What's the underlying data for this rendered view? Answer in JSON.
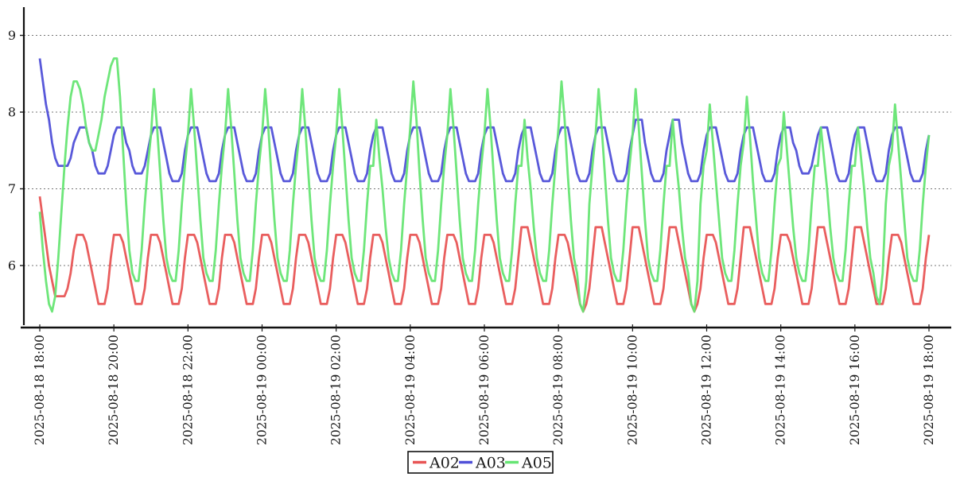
{
  "chart_data": {
    "type": "line",
    "title": "",
    "xlabel": "",
    "ylabel": "",
    "grid": "horizontal-dotted",
    "legend_position": "bottom-center",
    "x_axis": {
      "start": "2025-08-18 18:00",
      "end": "2025-08-19 18:00",
      "step_minutes": 5,
      "tick_every_n_points": 24,
      "tick_labels": [
        "2025-08-18 18:00",
        "2025-08-18 20:00",
        "2025-08-18 22:00",
        "2025-08-19 00:00",
        "2025-08-19 02:00",
        "2025-08-19 04:00",
        "2025-08-19 06:00",
        "2025-08-19 08:00",
        "2025-08-19 10:00",
        "2025-08-19 12:00",
        "2025-08-19 14:00",
        "2025-08-19 16:00",
        "2025-08-19 18:00"
      ]
    },
    "y_axis": {
      "ticks": [
        6,
        7,
        8,
        9
      ],
      "range": [
        5.2,
        9.4
      ]
    },
    "series": [
      {
        "name": "A02",
        "color": "#e85555",
        "values": [
          6.9,
          6.6,
          6.3,
          6.0,
          5.8,
          5.6,
          5.6,
          5.6,
          5.6,
          5.7,
          5.9,
          6.2,
          6.4,
          6.4,
          6.4,
          6.3,
          6.1,
          5.9,
          5.7,
          5.5,
          5.5,
          5.5,
          5.7,
          6.1,
          6.4,
          6.4,
          6.4,
          6.3,
          6.1,
          5.9,
          5.7,
          5.5,
          5.5,
          5.5,
          5.7,
          6.1,
          6.4,
          6.4,
          6.4,
          6.3,
          6.1,
          5.9,
          5.7,
          5.5,
          5.5,
          5.5,
          5.7,
          6.1,
          6.4,
          6.4,
          6.4,
          6.3,
          6.1,
          5.9,
          5.7,
          5.5,
          5.5,
          5.5,
          5.7,
          6.1,
          6.4,
          6.4,
          6.4,
          6.3,
          6.1,
          5.9,
          5.7,
          5.5,
          5.5,
          5.5,
          5.7,
          6.1,
          6.4,
          6.4,
          6.4,
          6.3,
          6.1,
          5.9,
          5.7,
          5.5,
          5.5,
          5.5,
          5.7,
          6.1,
          6.4,
          6.4,
          6.4,
          6.3,
          6.1,
          5.9,
          5.7,
          5.5,
          5.5,
          5.5,
          5.7,
          6.1,
          6.4,
          6.4,
          6.4,
          6.3,
          6.1,
          5.9,
          5.7,
          5.5,
          5.5,
          5.5,
          5.7,
          6.1,
          6.4,
          6.4,
          6.4,
          6.3,
          6.1,
          5.9,
          5.7,
          5.5,
          5.5,
          5.5,
          5.7,
          6.1,
          6.4,
          6.4,
          6.4,
          6.3,
          6.1,
          5.9,
          5.7,
          5.5,
          5.5,
          5.5,
          5.7,
          6.1,
          6.4,
          6.4,
          6.4,
          6.3,
          6.1,
          5.9,
          5.7,
          5.5,
          5.5,
          5.5,
          5.7,
          6.1,
          6.4,
          6.4,
          6.4,
          6.3,
          6.1,
          5.9,
          5.7,
          5.5,
          5.5,
          5.5,
          5.7,
          6.1,
          6.5,
          6.5,
          6.5,
          6.3,
          6.1,
          5.9,
          5.7,
          5.5,
          5.5,
          5.5,
          5.7,
          6.1,
          6.4,
          6.4,
          6.4,
          6.3,
          6.1,
          5.9,
          5.7,
          5.5,
          5.4,
          5.5,
          5.7,
          6.1,
          6.5,
          6.5,
          6.5,
          6.3,
          6.1,
          5.9,
          5.7,
          5.5,
          5.5,
          5.5,
          5.7,
          6.1,
          6.5,
          6.5,
          6.5,
          6.3,
          6.1,
          5.9,
          5.7,
          5.5,
          5.5,
          5.5,
          5.7,
          6.1,
          6.5,
          6.5,
          6.5,
          6.3,
          6.1,
          5.9,
          5.7,
          5.5,
          5.4,
          5.5,
          5.7,
          6.1,
          6.4,
          6.4,
          6.4,
          6.3,
          6.1,
          5.9,
          5.7,
          5.5,
          5.5,
          5.5,
          5.7,
          6.1,
          6.5,
          6.5,
          6.5,
          6.3,
          6.1,
          5.9,
          5.7,
          5.5,
          5.5,
          5.5,
          5.7,
          6.1,
          6.4,
          6.4,
          6.4,
          6.3,
          6.1,
          5.9,
          5.7,
          5.5,
          5.5,
          5.5,
          5.7,
          6.1,
          6.5,
          6.5,
          6.5,
          6.3,
          6.1,
          5.9,
          5.7,
          5.5,
          5.5,
          5.5,
          5.7,
          6.1,
          6.5,
          6.5,
          6.5,
          6.3,
          6.1,
          5.9,
          5.7,
          5.5,
          5.5,
          5.5,
          5.7,
          6.1,
          6.4,
          6.4,
          6.4,
          6.3,
          6.1,
          5.9,
          5.7,
          5.5,
          5.5,
          5.5,
          5.7,
          6.1,
          6.4
        ]
      },
      {
        "name": "A03",
        "color": "#5050d8",
        "values": [
          8.7,
          8.4,
          8.1,
          7.9,
          7.6,
          7.4,
          7.3,
          7.3,
          7.3,
          7.3,
          7.4,
          7.6,
          7.7,
          7.8,
          7.8,
          7.8,
          7.6,
          7.5,
          7.3,
          7.2,
          7.2,
          7.2,
          7.3,
          7.5,
          7.7,
          7.8,
          7.8,
          7.8,
          7.6,
          7.5,
          7.3,
          7.2,
          7.2,
          7.2,
          7.3,
          7.5,
          7.7,
          7.8,
          7.8,
          7.8,
          7.6,
          7.4,
          7.2,
          7.1,
          7.1,
          7.1,
          7.2,
          7.5,
          7.7,
          7.8,
          7.8,
          7.8,
          7.6,
          7.4,
          7.2,
          7.1,
          7.1,
          7.1,
          7.2,
          7.5,
          7.7,
          7.8,
          7.8,
          7.8,
          7.6,
          7.4,
          7.2,
          7.1,
          7.1,
          7.1,
          7.2,
          7.5,
          7.7,
          7.8,
          7.8,
          7.8,
          7.6,
          7.4,
          7.2,
          7.1,
          7.1,
          7.1,
          7.2,
          7.5,
          7.7,
          7.8,
          7.8,
          7.8,
          7.6,
          7.4,
          7.2,
          7.1,
          7.1,
          7.1,
          7.2,
          7.5,
          7.7,
          7.8,
          7.8,
          7.8,
          7.6,
          7.4,
          7.2,
          7.1,
          7.1,
          7.1,
          7.2,
          7.5,
          7.7,
          7.8,
          7.8,
          7.8,
          7.6,
          7.4,
          7.2,
          7.1,
          7.1,
          7.1,
          7.2,
          7.5,
          7.7,
          7.8,
          7.8,
          7.8,
          7.6,
          7.4,
          7.2,
          7.1,
          7.1,
          7.1,
          7.2,
          7.5,
          7.7,
          7.8,
          7.8,
          7.8,
          7.6,
          7.4,
          7.2,
          7.1,
          7.1,
          7.1,
          7.2,
          7.5,
          7.7,
          7.8,
          7.8,
          7.8,
          7.6,
          7.4,
          7.2,
          7.1,
          7.1,
          7.1,
          7.2,
          7.5,
          7.7,
          7.8,
          7.8,
          7.8,
          7.6,
          7.4,
          7.2,
          7.1,
          7.1,
          7.1,
          7.2,
          7.5,
          7.7,
          7.8,
          7.8,
          7.8,
          7.6,
          7.4,
          7.2,
          7.1,
          7.1,
          7.1,
          7.2,
          7.5,
          7.7,
          7.8,
          7.8,
          7.8,
          7.6,
          7.4,
          7.2,
          7.1,
          7.1,
          7.1,
          7.2,
          7.5,
          7.7,
          7.9,
          7.9,
          7.9,
          7.6,
          7.4,
          7.2,
          7.1,
          7.1,
          7.1,
          7.2,
          7.5,
          7.7,
          7.9,
          7.9,
          7.9,
          7.6,
          7.4,
          7.2,
          7.1,
          7.1,
          7.1,
          7.2,
          7.5,
          7.7,
          7.8,
          7.8,
          7.8,
          7.6,
          7.4,
          7.2,
          7.1,
          7.1,
          7.1,
          7.2,
          7.5,
          7.7,
          7.8,
          7.8,
          7.8,
          7.6,
          7.4,
          7.2,
          7.1,
          7.1,
          7.1,
          7.2,
          7.5,
          7.7,
          7.8,
          7.8,
          7.8,
          7.6,
          7.5,
          7.3,
          7.2,
          7.2,
          7.2,
          7.3,
          7.5,
          7.7,
          7.8,
          7.8,
          7.8,
          7.6,
          7.4,
          7.2,
          7.1,
          7.1,
          7.1,
          7.2,
          7.5,
          7.7,
          7.8,
          7.8,
          7.8,
          7.6,
          7.4,
          7.2,
          7.1,
          7.1,
          7.1,
          7.2,
          7.5,
          7.7,
          7.8,
          7.8,
          7.8,
          7.6,
          7.4,
          7.2,
          7.1,
          7.1,
          7.1,
          7.2,
          7.5,
          7.7
        ]
      },
      {
        "name": "A05",
        "color": "#66e573",
        "values": [
          6.7,
          6.2,
          5.8,
          5.5,
          5.4,
          5.6,
          6.1,
          6.7,
          7.3,
          7.8,
          8.2,
          8.4,
          8.4,
          8.3,
          8.1,
          7.8,
          7.6,
          7.5,
          7.5,
          7.7,
          7.9,
          8.2,
          8.4,
          8.6,
          8.7,
          8.7,
          8.2,
          7.5,
          6.8,
          6.2,
          5.9,
          5.8,
          5.8,
          6.2,
          6.8,
          7.3,
          7.7,
          8.3,
          7.8,
          7.2,
          6.6,
          6.1,
          5.9,
          5.8,
          5.8,
          6.2,
          6.8,
          7.3,
          7.7,
          8.3,
          7.8,
          7.2,
          6.6,
          6.1,
          5.9,
          5.8,
          5.8,
          6.2,
          6.8,
          7.3,
          7.7,
          8.3,
          7.8,
          7.2,
          6.6,
          6.1,
          5.9,
          5.8,
          5.8,
          6.2,
          6.8,
          7.3,
          7.7,
          8.3,
          7.8,
          7.2,
          6.6,
          6.1,
          5.9,
          5.8,
          5.8,
          6.2,
          6.8,
          7.3,
          7.7,
          8.3,
          7.8,
          7.2,
          6.6,
          6.1,
          5.9,
          5.8,
          5.8,
          6.2,
          6.8,
          7.3,
          7.7,
          8.3,
          7.8,
          7.2,
          6.6,
          6.1,
          5.9,
          5.8,
          5.8,
          6.2,
          6.8,
          7.3,
          7.3,
          7.9,
          7.4,
          7.0,
          6.5,
          6.1,
          5.9,
          5.8,
          5.8,
          6.2,
          6.8,
          7.3,
          7.8,
          8.4,
          7.9,
          7.2,
          6.6,
          6.1,
          5.9,
          5.8,
          5.8,
          6.2,
          6.8,
          7.3,
          7.7,
          8.3,
          7.8,
          7.2,
          6.6,
          6.1,
          5.9,
          5.8,
          5.8,
          6.2,
          6.8,
          7.3,
          7.7,
          8.3,
          7.8,
          7.2,
          6.6,
          6.1,
          5.9,
          5.8,
          5.8,
          6.2,
          6.8,
          7.3,
          7.3,
          7.9,
          7.4,
          7.0,
          6.5,
          6.1,
          5.9,
          5.8,
          5.8,
          6.2,
          6.8,
          7.3,
          7.8,
          8.4,
          7.9,
          7.2,
          6.6,
          6.1,
          5.9,
          5.5,
          5.4,
          5.8,
          6.8,
          7.3,
          7.7,
          8.3,
          7.8,
          7.2,
          6.6,
          6.1,
          5.9,
          5.8,
          5.8,
          6.2,
          6.8,
          7.3,
          7.7,
          8.3,
          7.8,
          7.2,
          6.6,
          6.1,
          5.9,
          5.8,
          5.8,
          6.2,
          6.8,
          7.3,
          7.3,
          7.9,
          7.4,
          7.0,
          6.5,
          6.1,
          5.9,
          5.5,
          5.4,
          5.8,
          6.8,
          7.3,
          7.5,
          8.1,
          7.6,
          7.1,
          6.6,
          6.1,
          5.9,
          5.8,
          5.8,
          6.2,
          6.8,
          7.3,
          7.6,
          8.2,
          7.7,
          7.1,
          6.6,
          6.1,
          5.9,
          5.8,
          5.8,
          6.2,
          6.8,
          7.3,
          7.4,
          8.0,
          7.5,
          7.0,
          6.5,
          6.1,
          5.9,
          5.8,
          5.8,
          6.2,
          6.8,
          7.3,
          7.3,
          7.8,
          7.4,
          7.0,
          6.5,
          6.1,
          5.9,
          5.8,
          5.8,
          6.2,
          6.8,
          7.3,
          7.3,
          7.8,
          7.4,
          7.0,
          6.5,
          6.1,
          5.9,
          5.6,
          5.5,
          5.9,
          6.8,
          7.3,
          7.5,
          8.1,
          7.6,
          7.1,
          6.6,
          6.1,
          5.9,
          5.8,
          5.8,
          6.2,
          6.8,
          7.3,
          7.7
        ]
      }
    ]
  }
}
